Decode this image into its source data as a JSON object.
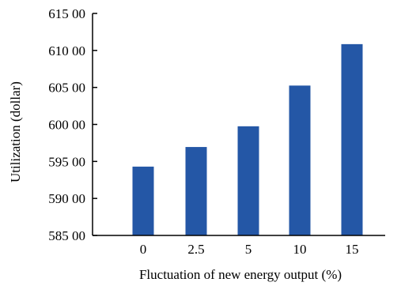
{
  "chart_data": {
    "type": "bar",
    "categories": [
      "0",
      "2.5",
      "5",
      "10",
      "15"
    ],
    "values": [
      59430,
      59695,
      59975,
      60525,
      61085
    ],
    "xlabel": "Fluctuation  of new energy  output  (%)",
    "ylabel": "Utilization  (dollar)",
    "ylim": [
      58500,
      61500
    ],
    "yticks": [
      58500,
      59000,
      59500,
      60000,
      60500,
      61000,
      61500
    ],
    "ytick_labels": [
      "585 00",
      "590 00",
      "595 00",
      "600 00",
      "605 00",
      "610 00",
      "615 00"
    ],
    "bar_color": "#2457a6",
    "grid": false,
    "legend": "none"
  }
}
